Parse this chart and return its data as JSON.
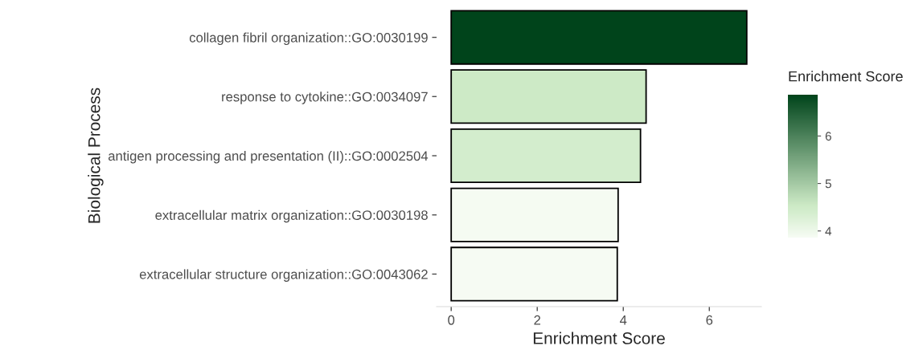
{
  "chart_data": {
    "type": "bar",
    "orientation": "horizontal",
    "xlabel": "Enrichment Score",
    "ylabel": "Biological Process",
    "categories": [
      "collagen fibril organization::GO:0030199",
      "response to cytokine::GO:0034097",
      "antigen processing and presentation (II)::GO:0002504",
      "extracellular matrix organization::GO:0030198",
      "extracellular structure organization::GO:0043062"
    ],
    "values": [
      6.87,
      4.53,
      4.4,
      3.88,
      3.86
    ],
    "colors": [
      "#00441b",
      "#cdeac6",
      "#d3edcd",
      "#f5fbf2",
      "#f6fbf3"
    ],
    "xlim": [
      -0.34,
      7.21
    ],
    "xticks": [
      0,
      2,
      4,
      6
    ],
    "clabel": "Enrichment Score",
    "clim": [
      3.86,
      6.87
    ],
    "cticks": [
      4,
      5,
      6
    ],
    "grid": false
  }
}
